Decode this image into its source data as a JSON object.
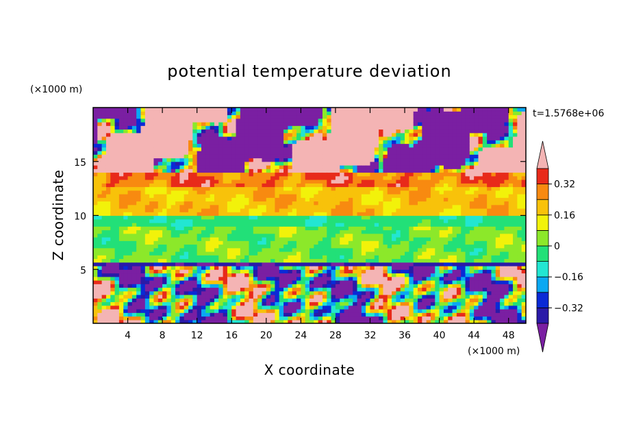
{
  "chart_data": {
    "type": "heatmap",
    "title": "potential temperature deviation",
    "xlabel": "X coordinate",
    "ylabel": "Z coordinate",
    "x_unit": "(×1000 m)",
    "y_unit": "(×1000 m)",
    "time_label": "t=1.5768e+06",
    "xlim": [
      0,
      50
    ],
    "ylim": [
      0,
      20
    ],
    "x_ticks": [
      4,
      8,
      12,
      16,
      20,
      24,
      28,
      32,
      36,
      40,
      44,
      48
    ],
    "y_ticks": [
      5,
      10,
      15
    ],
    "colorbar": {
      "labels": [
        {
          "value": 0.32,
          "text": "0.32"
        },
        {
          "value": 0.16,
          "text": "0.16"
        },
        {
          "value": 0,
          "text": "0"
        },
        {
          "value": -0.16,
          "text": "−0.16"
        },
        {
          "value": -0.32,
          "text": "−0.32"
        }
      ],
      "levels": [
        -0.4,
        -0.32,
        -0.24,
        -0.16,
        -0.08,
        0,
        0.08,
        0.16,
        0.24,
        0.32,
        0.4
      ],
      "colors": [
        "#7a1fa2",
        "#2a1aa8",
        "#0a2ad6",
        "#0aa8f2",
        "#22e6d2",
        "#22e078",
        "#8ce82a",
        "#f2f20a",
        "#f8c20a",
        "#f88a10",
        "#e82a1a",
        "#f4b4b4"
      ]
    },
    "field_summary": {
      "description_bands": [
        {
          "z_range": [
            0,
            5.3
          ],
          "mean": -0.05,
          "amplitude": 0.55
        },
        {
          "z_range": [
            5.3,
            5.6
          ],
          "mean": -0.38,
          "amplitude": 0.05
        },
        {
          "z_range": [
            5.6,
            9
          ],
          "mean": 0.02,
          "amplitude": 0.08
        },
        {
          "z_range": [
            9,
            10
          ],
          "mean": -0.05,
          "amplitude": 0.05
        },
        {
          "z_range": [
            10,
            12.5
          ],
          "mean": 0.2,
          "amplitude": 0.08
        },
        {
          "z_range": [
            12.5,
            14
          ],
          "mean": 0.3,
          "amplitude": 0.1
        },
        {
          "z_range": [
            14,
            20
          ],
          "mean": 0.0,
          "amplitude": 0.6
        }
      ]
    }
  }
}
